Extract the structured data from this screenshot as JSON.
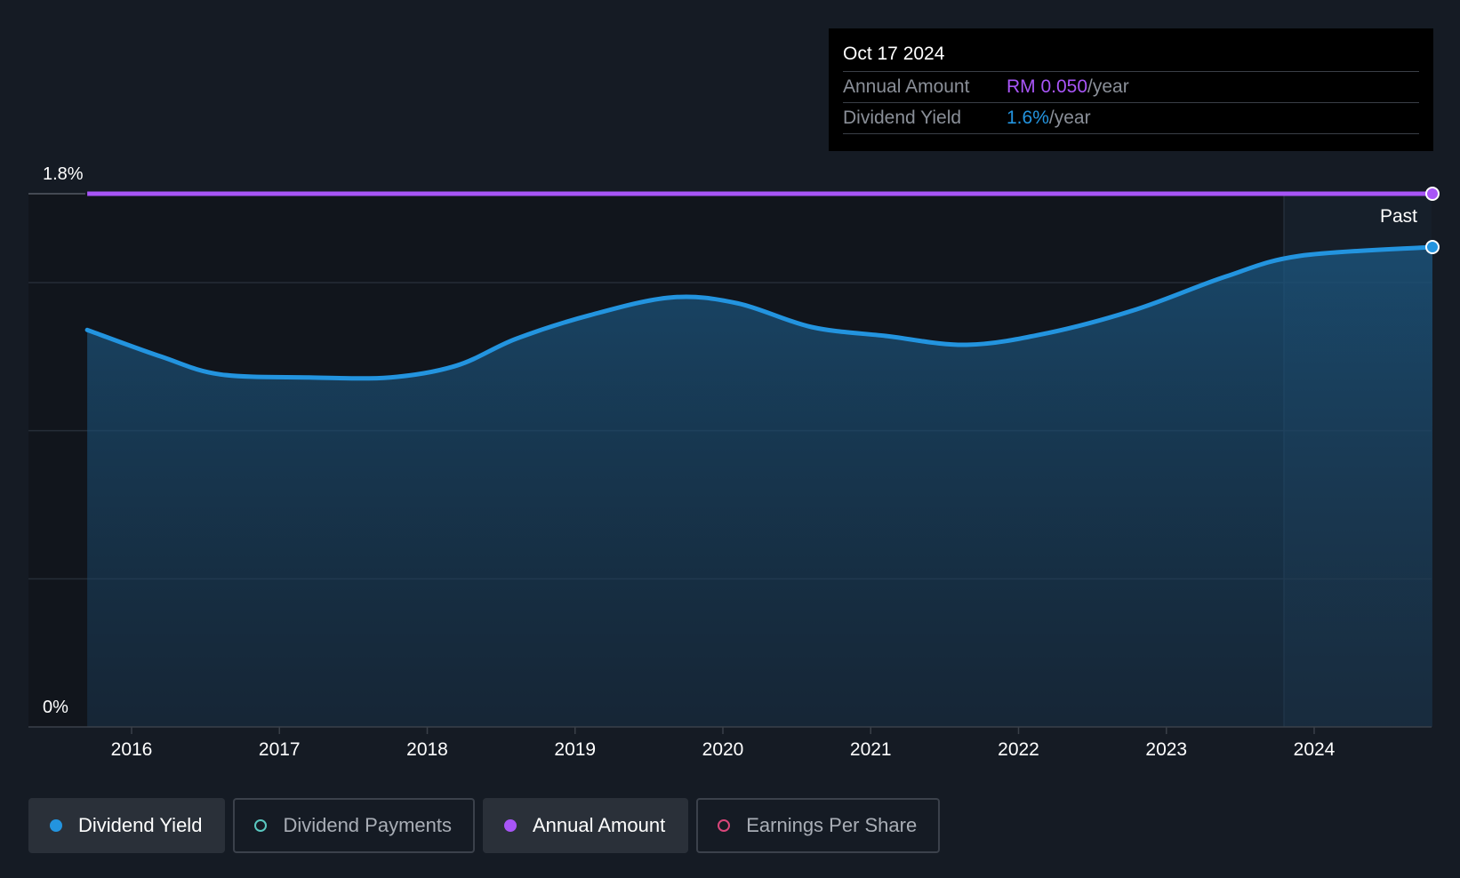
{
  "tooltip": {
    "date": "Oct 17 2024",
    "rows": [
      {
        "label": "Annual Amount",
        "value": "RM 0.050",
        "suffix": "/year",
        "color": "#a855f7"
      },
      {
        "label": "Dividend Yield",
        "value": "1.6%",
        "suffix": "/year",
        "color": "#2394df"
      }
    ]
  },
  "chart_data": {
    "type": "area",
    "x_ticks": [
      "2016",
      "2017",
      "2018",
      "2019",
      "2020",
      "2021",
      "2022",
      "2023",
      "2024"
    ],
    "y_tick_labels": [
      "1.8%",
      "0%"
    ],
    "ylim": [
      0,
      1.8
    ],
    "grid": true,
    "region_label": "Past",
    "series": [
      {
        "name": "Dividend Yield",
        "color": "#2394df",
        "x": [
          2015.7,
          2016.2,
          2016.6,
          2017.2,
          2017.75,
          2018.2,
          2018.6,
          2019.1,
          2019.65,
          2020.1,
          2020.6,
          2021.1,
          2021.65,
          2022.2,
          2022.8,
          2023.4,
          2023.9,
          2024.8
        ],
        "y": [
          1.34,
          1.25,
          1.19,
          1.18,
          1.18,
          1.22,
          1.31,
          1.39,
          1.45,
          1.43,
          1.35,
          1.32,
          1.29,
          1.33,
          1.41,
          1.52,
          1.59,
          1.62
        ]
      },
      {
        "name": "Annual Amount",
        "color": "#a855f7",
        "x": [
          2015.7,
          2024.8
        ],
        "y": [
          1.8,
          1.8
        ]
      }
    ]
  },
  "legend": [
    {
      "label": "Dividend Yield",
      "color": "#2394df",
      "active": true
    },
    {
      "label": "Dividend Payments",
      "color": "#5ac8c0",
      "active": false
    },
    {
      "label": "Annual Amount",
      "color": "#a855f7",
      "active": true
    },
    {
      "label": "Earnings Per Share",
      "color": "#d9467a",
      "active": false
    }
  ]
}
